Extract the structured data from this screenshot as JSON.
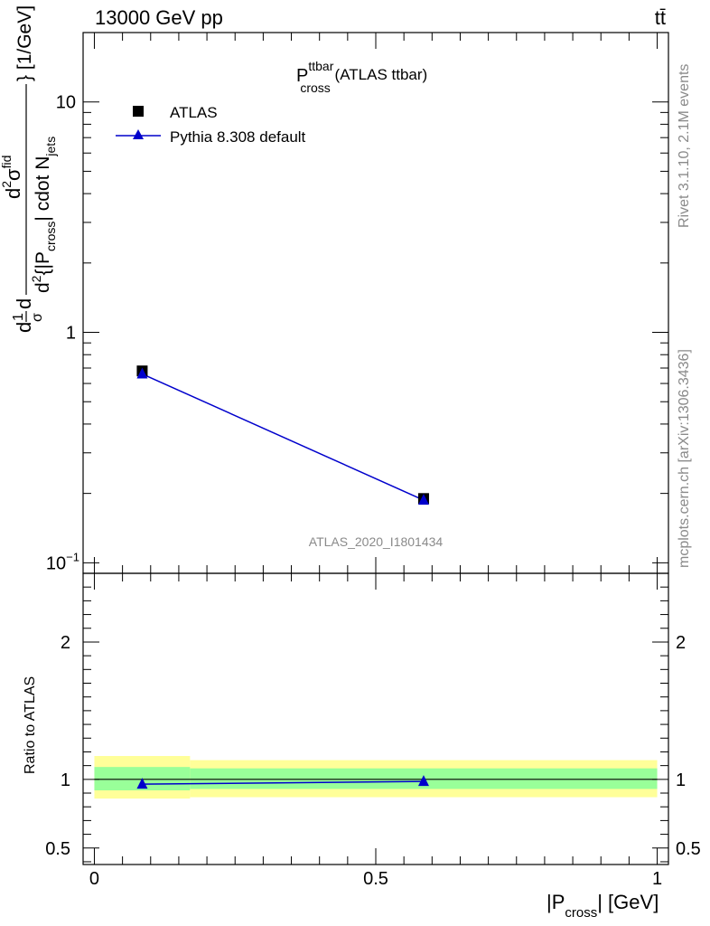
{
  "header": {
    "energy_label": "13000 GeV pp",
    "process_label": "tt̄"
  },
  "side": {
    "rivet": "Rivet 3.1.10,  2.1M events",
    "mcplots": "mcplots.cern.ch [arXiv:1306.3436]"
  },
  "chart_data": [
    {
      "type": "scatter",
      "panel": "main",
      "title": {
        "main": "P",
        "sup": "ttbar",
        "sub": "cross",
        "rest": " (ATLAS ttbar)"
      },
      "watermark": "ATLAS_2020_I1801434",
      "ylabel": "d¹d/σd  d²σᶠᴵᵈ / d²{|P_cross| cdot N_jets} [1/GeV]",
      "ylabel_parts": {
        "frac1_num": "1",
        "frac1_den": "σ",
        "d_prefix": "d",
        "d_suffix": "d",
        "num_d": "d",
        "num_sup": "2",
        "num_sigma": "σ",
        "num_sup2": "fid",
        "den_d": "d",
        "den_sup": "2",
        "den_text1": "{|P",
        "den_sub1": "cross",
        "den_text2": "| cdot N",
        "den_sub2": "jets",
        "den_text3": "}",
        "units": "[1/GeV]"
      },
      "yscale": "log",
      "ylim": [
        0.09,
        20
      ],
      "xlim": [
        -0.02,
        1.02
      ],
      "y_tick_labels": [
        {
          "value": 0.1,
          "base": "10",
          "exp": "−1"
        },
        {
          "value": 1,
          "base": "1",
          "exp": ""
        },
        {
          "value": 10,
          "base": "10",
          "exp": ""
        }
      ],
      "legend": [
        "ATLAS",
        "Pythia 8.308 default"
      ],
      "legend_position": "top-left",
      "series": [
        {
          "name": "ATLAS",
          "marker": "square",
          "color": "#000000",
          "x": [
            0.085,
            0.585
          ],
          "y": [
            0.68,
            0.19
          ]
        },
        {
          "name": "Pythia 8.308 default",
          "marker": "triangle",
          "color": "#0000cc",
          "x": [
            0.085,
            0.585
          ],
          "y": [
            0.66,
            0.187
          ]
        }
      ]
    },
    {
      "type": "scatter",
      "panel": "ratio",
      "ylabel": "Ratio to ATLAS",
      "ylim": [
        0.38,
        2.5
      ],
      "xlim": [
        -0.02,
        1.02
      ],
      "y_tick_labels": [
        "0.5",
        "1",
        "2"
      ],
      "y_tick_values": [
        0.5,
        1,
        2
      ],
      "x_tick_labels": [
        "0",
        "0.5",
        "1"
      ],
      "x_tick_values": [
        0,
        0.5,
        1
      ],
      "xlabel_parts": {
        "pre": "|P",
        "sub": "cross",
        "post": "| [GeV]"
      },
      "bands": [
        {
          "x0": 0.0,
          "x1": 0.17,
          "green_lo": 0.92,
          "green_hi": 1.09,
          "yellow_lo": 0.86,
          "yellow_hi": 1.17
        },
        {
          "x0": 0.17,
          "x1": 1.0,
          "green_lo": 0.93,
          "green_hi": 1.08,
          "yellow_lo": 0.87,
          "yellow_hi": 1.14
        }
      ],
      "band_colors": {
        "green": "#99ff99",
        "yellow": "#ffff99"
      },
      "series": [
        {
          "name": "Pythia 8.308 default",
          "marker": "triangle",
          "color": "#0000cc",
          "x": [
            0.085,
            0.585
          ],
          "y": [
            0.965,
            0.985
          ],
          "err": [
            0.03,
            0.025
          ]
        }
      ]
    }
  ]
}
